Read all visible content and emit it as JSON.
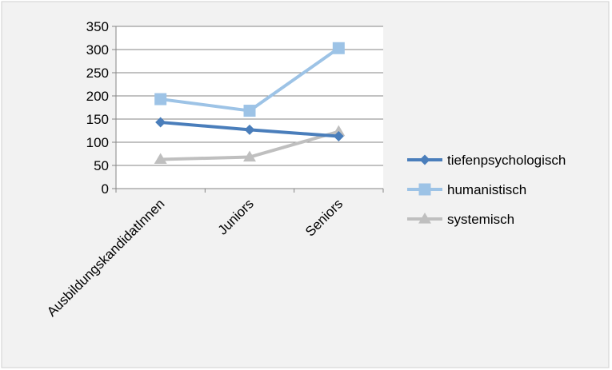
{
  "chart_data": {
    "type": "line",
    "categories": [
      "AusbildungskandidatInnen",
      "Juniors",
      "Seniors"
    ],
    "series": [
      {
        "name": "tiefenpsychologisch",
        "values": [
          143,
          127,
          113
        ],
        "color": "#4a7ebb",
        "marker": "diamond"
      },
      {
        "name": "humanistisch",
        "values": [
          193,
          168,
          303
        ],
        "color": "#9dc3e6",
        "marker": "square"
      },
      {
        "name": "systemisch",
        "values": [
          63,
          68,
          123
        ],
        "color": "#bfbfbf",
        "marker": "triangle"
      }
    ],
    "ylim": [
      0,
      350
    ],
    "yticks": [
      "0",
      "50",
      "100",
      "150",
      "200",
      "250",
      "300",
      "350"
    ],
    "grid": true,
    "legend_position": "right",
    "plot_background": "#ffffff",
    "chart_background": "#f2f2f2",
    "gridline_color": "#868686"
  }
}
